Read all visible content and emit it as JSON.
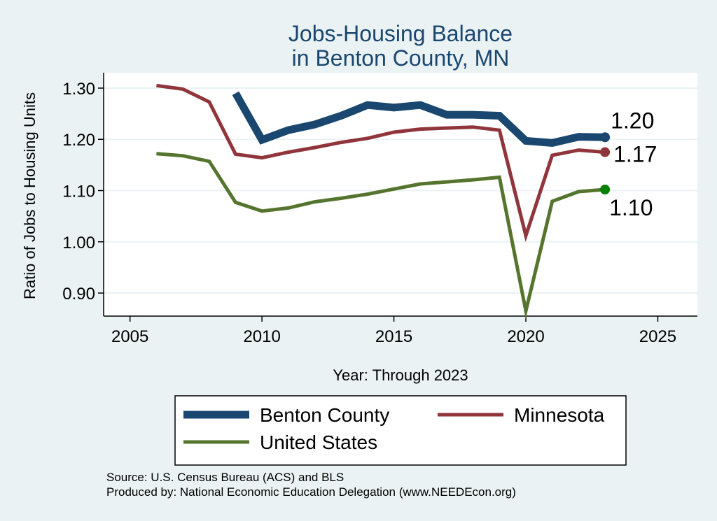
{
  "chart_data": {
    "type": "line",
    "title": [
      "Jobs-Housing Balance",
      "in Benton County, MN"
    ],
    "xlabel": "Year: Through 2023",
    "ylabel": "Ratio of Jobs to Housing Units",
    "xlim": [
      2004,
      2026.5
    ],
    "ylim": [
      0.855,
      1.33
    ],
    "xticks": [
      2005,
      2010,
      2015,
      2020,
      2025
    ],
    "yticks": [
      0.9,
      1.0,
      1.1,
      1.2,
      1.3
    ],
    "ytick_labels": [
      "0.90",
      "1.00",
      "1.10",
      "1.20",
      "1.30"
    ],
    "grid": true,
    "legend_position": "bottom",
    "series": [
      {
        "name": "Benton County",
        "color": "#1a476f",
        "line_width": 11,
        "end_label": "1.20",
        "marker_color": "#1a476f",
        "x": [
          2009,
          2010,
          2011,
          2012,
          2013,
          2014,
          2015,
          2016,
          2017,
          2018,
          2019,
          2020,
          2021,
          2022,
          2023
        ],
        "y": [
          1.29,
          1.199,
          1.218,
          1.229,
          1.246,
          1.267,
          1.262,
          1.267,
          1.248,
          1.248,
          1.246,
          1.197,
          1.193,
          1.205,
          1.204
        ]
      },
      {
        "name": "Minnesota",
        "color": "#90353b",
        "line_width": 5,
        "end_label": "1.17",
        "marker_color": "#90353b",
        "x": [
          2006,
          2007,
          2008,
          2009,
          2010,
          2011,
          2012,
          2013,
          2014,
          2015,
          2016,
          2017,
          2018,
          2019,
          2020,
          2021,
          2022,
          2023
        ],
        "y": [
          1.305,
          1.298,
          1.273,
          1.171,
          1.164,
          1.175,
          1.184,
          1.194,
          1.202,
          1.214,
          1.22,
          1.222,
          1.224,
          1.218,
          1.012,
          1.169,
          1.179,
          1.175
        ]
      },
      {
        "name": "United States",
        "color": "#55752f",
        "line_width": 5,
        "end_label": "1.10",
        "marker_color": "#008000",
        "x": [
          2006,
          2007,
          2008,
          2009,
          2010,
          2011,
          2012,
          2013,
          2014,
          2015,
          2016,
          2017,
          2018,
          2019,
          2020,
          2021,
          2022,
          2023
        ],
        "y": [
          1.172,
          1.168,
          1.157,
          1.077,
          1.06,
          1.066,
          1.078,
          1.085,
          1.093,
          1.103,
          1.113,
          1.117,
          1.121,
          1.126,
          0.865,
          1.079,
          1.098,
          1.102
        ]
      }
    ]
  },
  "source": "Source: U.S. Census Bureau (ACS) and BLS",
  "produced_by": "Produced by: National Economic Education Delegation (www.NEEDEcon.org)"
}
